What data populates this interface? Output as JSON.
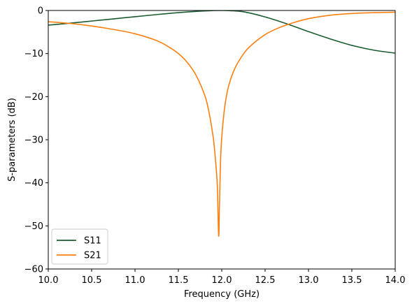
{
  "chart_data": {
    "type": "line",
    "title": "",
    "xlabel": "Frequency (GHz)",
    "ylabel": "S-parameters (dB)",
    "xlim": [
      10.0,
      14.0
    ],
    "ylim": [
      -60,
      0
    ],
    "xticks": [
      10.0,
      10.5,
      11.0,
      11.5,
      12.0,
      12.5,
      13.0,
      13.5,
      14.0
    ],
    "xtick_labels": [
      "10.0",
      "10.5",
      "11.0",
      "11.5",
      "12.0",
      "12.5",
      "13.0",
      "13.5",
      "14.0"
    ],
    "yticks": [
      -60,
      -50,
      -40,
      -30,
      -20,
      -10,
      0
    ],
    "ytick_labels": [
      "−60",
      "−50",
      "−40",
      "−30",
      "−20",
      "−10",
      "0"
    ],
    "grid": false,
    "legend_position": "lower-left",
    "series": [
      {
        "name": "S11",
        "color": "#1a5c30",
        "x": [
          10.0,
          10.25,
          10.5,
          10.75,
          11.0,
          11.25,
          11.5,
          11.75,
          11.9,
          12.0,
          12.1,
          12.25,
          12.5,
          12.75,
          13.0,
          13.25,
          13.5,
          13.75,
          14.0
        ],
        "y": [
          -3.4,
          -2.95,
          -2.45,
          -1.95,
          -1.45,
          -0.95,
          -0.5,
          -0.15,
          -0.02,
          0.0,
          -0.05,
          -0.3,
          -1.5,
          -3.1,
          -4.9,
          -6.6,
          -8.1,
          -9.2,
          -9.9
        ]
      },
      {
        "name": "S21",
        "color": "#ff7f0e",
        "x": [
          10.0,
          10.25,
          10.5,
          10.75,
          11.0,
          11.25,
          11.4,
          11.5,
          11.6,
          11.7,
          11.8,
          11.85,
          11.9,
          11.93,
          11.95,
          11.965,
          11.975,
          11.99,
          12.01,
          12.04,
          12.08,
          12.15,
          12.25,
          12.35,
          12.5,
          12.65,
          12.8,
          13.0,
          13.25,
          13.5,
          13.75,
          14.0
        ],
        "y": [
          -2.6,
          -3.0,
          -3.6,
          -4.4,
          -5.4,
          -7.0,
          -8.6,
          -10.0,
          -12.0,
          -14.9,
          -19.5,
          -23.3,
          -29.2,
          -35.2,
          -41.2,
          -52.4,
          -44.0,
          -33.0,
          -27.0,
          -21.6,
          -17.5,
          -13.5,
          -10.1,
          -7.9,
          -5.6,
          -4.1,
          -3.0,
          -1.9,
          -1.1,
          -0.7,
          -0.5,
          -0.4
        ]
      }
    ]
  }
}
